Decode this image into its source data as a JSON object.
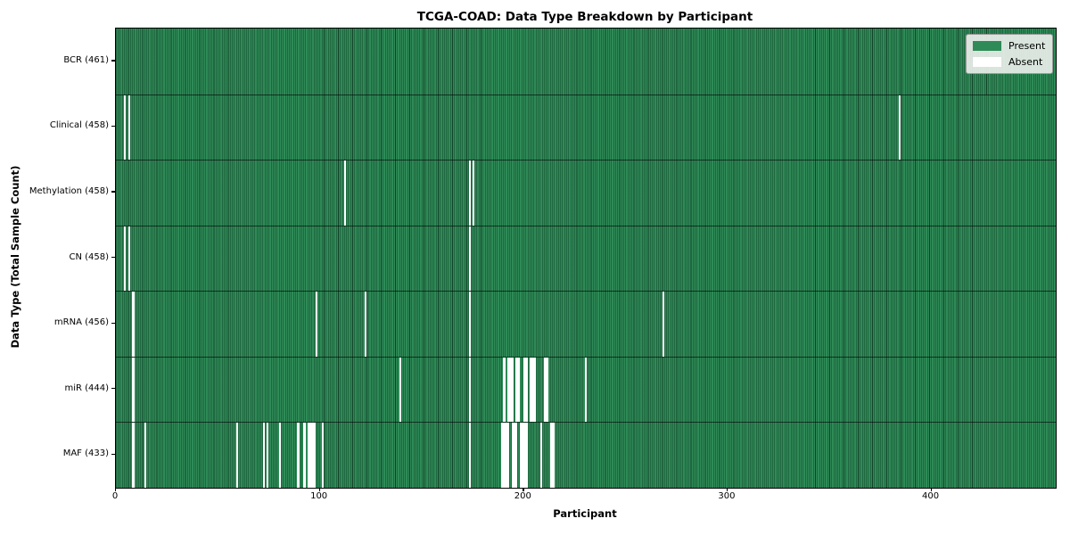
{
  "chart_data": {
    "type": "heatmap",
    "title": "TCGA-COAD: Data Type Breakdown by Participant",
    "xlabel": "Participant",
    "ylabel": "Data Type (Total Sample Count)",
    "n_participants": 461,
    "xlim": [
      0,
      461
    ],
    "x_ticks": [
      0,
      100,
      200,
      300,
      400
    ],
    "grid": false,
    "legend_position": "upper-right",
    "colors": {
      "present": "#2e8b57",
      "absent": "#ffffff"
    },
    "legend": [
      {
        "label": "Present",
        "color": "#2e8b57"
      },
      {
        "label": "Absent",
        "color": "#ffffff"
      }
    ],
    "rows": [
      {
        "name": "BCR",
        "label": "BCR (461)",
        "total": 461,
        "absent_participants": []
      },
      {
        "name": "Clinical",
        "label": "Clinical (458)",
        "total": 458,
        "absent_participants": [
          4,
          6,
          384
        ]
      },
      {
        "name": "Methylation",
        "label": "Methylation (458)",
        "total": 458,
        "absent_participants": [
          112,
          173,
          175
        ]
      },
      {
        "name": "CN",
        "label": "CN (458)",
        "total": 458,
        "absent_participants": [
          4,
          6,
          173
        ]
      },
      {
        "name": "mRNA",
        "label": "mRNA (456)",
        "total": 456,
        "absent_participants": [
          8,
          98,
          122,
          173,
          268
        ]
      },
      {
        "name": "miR",
        "label": "miR (444)",
        "total": 444,
        "absent_participants": [
          8,
          139,
          173,
          190,
          192,
          193,
          194,
          196,
          197,
          200,
          201,
          203,
          204,
          205,
          210,
          211,
          230
        ]
      },
      {
        "name": "MAF",
        "label": "MAF (433)",
        "total": 433,
        "absent_participants": [
          8,
          14,
          59,
          72,
          74,
          80,
          89,
          92,
          94,
          95,
          96,
          97,
          101,
          173,
          189,
          190,
          191,
          192,
          194,
          195,
          196,
          198,
          199,
          200,
          201,
          208,
          213,
          214
        ]
      }
    ]
  }
}
